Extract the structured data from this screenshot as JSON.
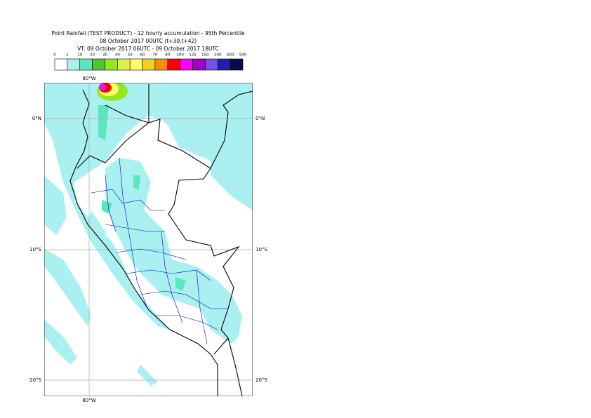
{
  "header": {
    "lines": [
      "Point Rainfall (TEST PRODUCT) - 12 hourly accumulation - 95th Percentile",
      "08 October 2017 00UTC (t+30,t+42)",
      "VT: 09 October 2017 06UTC - 09 October 2017 18UTC"
    ]
  },
  "legend": {
    "thresholds": [
      0,
      1,
      10,
      20,
      30,
      40,
      50,
      60,
      70,
      80,
      100,
      125,
      150,
      200,
      300,
      500
    ],
    "colors": [
      "#ffffff",
      "#aaf0f0",
      "#5ce6c0",
      "#4cc832",
      "#96e61e",
      "#dcf050",
      "#ffff64",
      "#f0d21e",
      "#ff8c00",
      "#ff0000",
      "#ff00ff",
      "#a000c8",
      "#7850e6",
      "#1e1eb4",
      "#0a0a50"
    ]
  },
  "map": {
    "lon_labels": [
      "80°W"
    ],
    "lat_labels": [
      "0°N",
      "10°S",
      "20°S"
    ]
  }
}
